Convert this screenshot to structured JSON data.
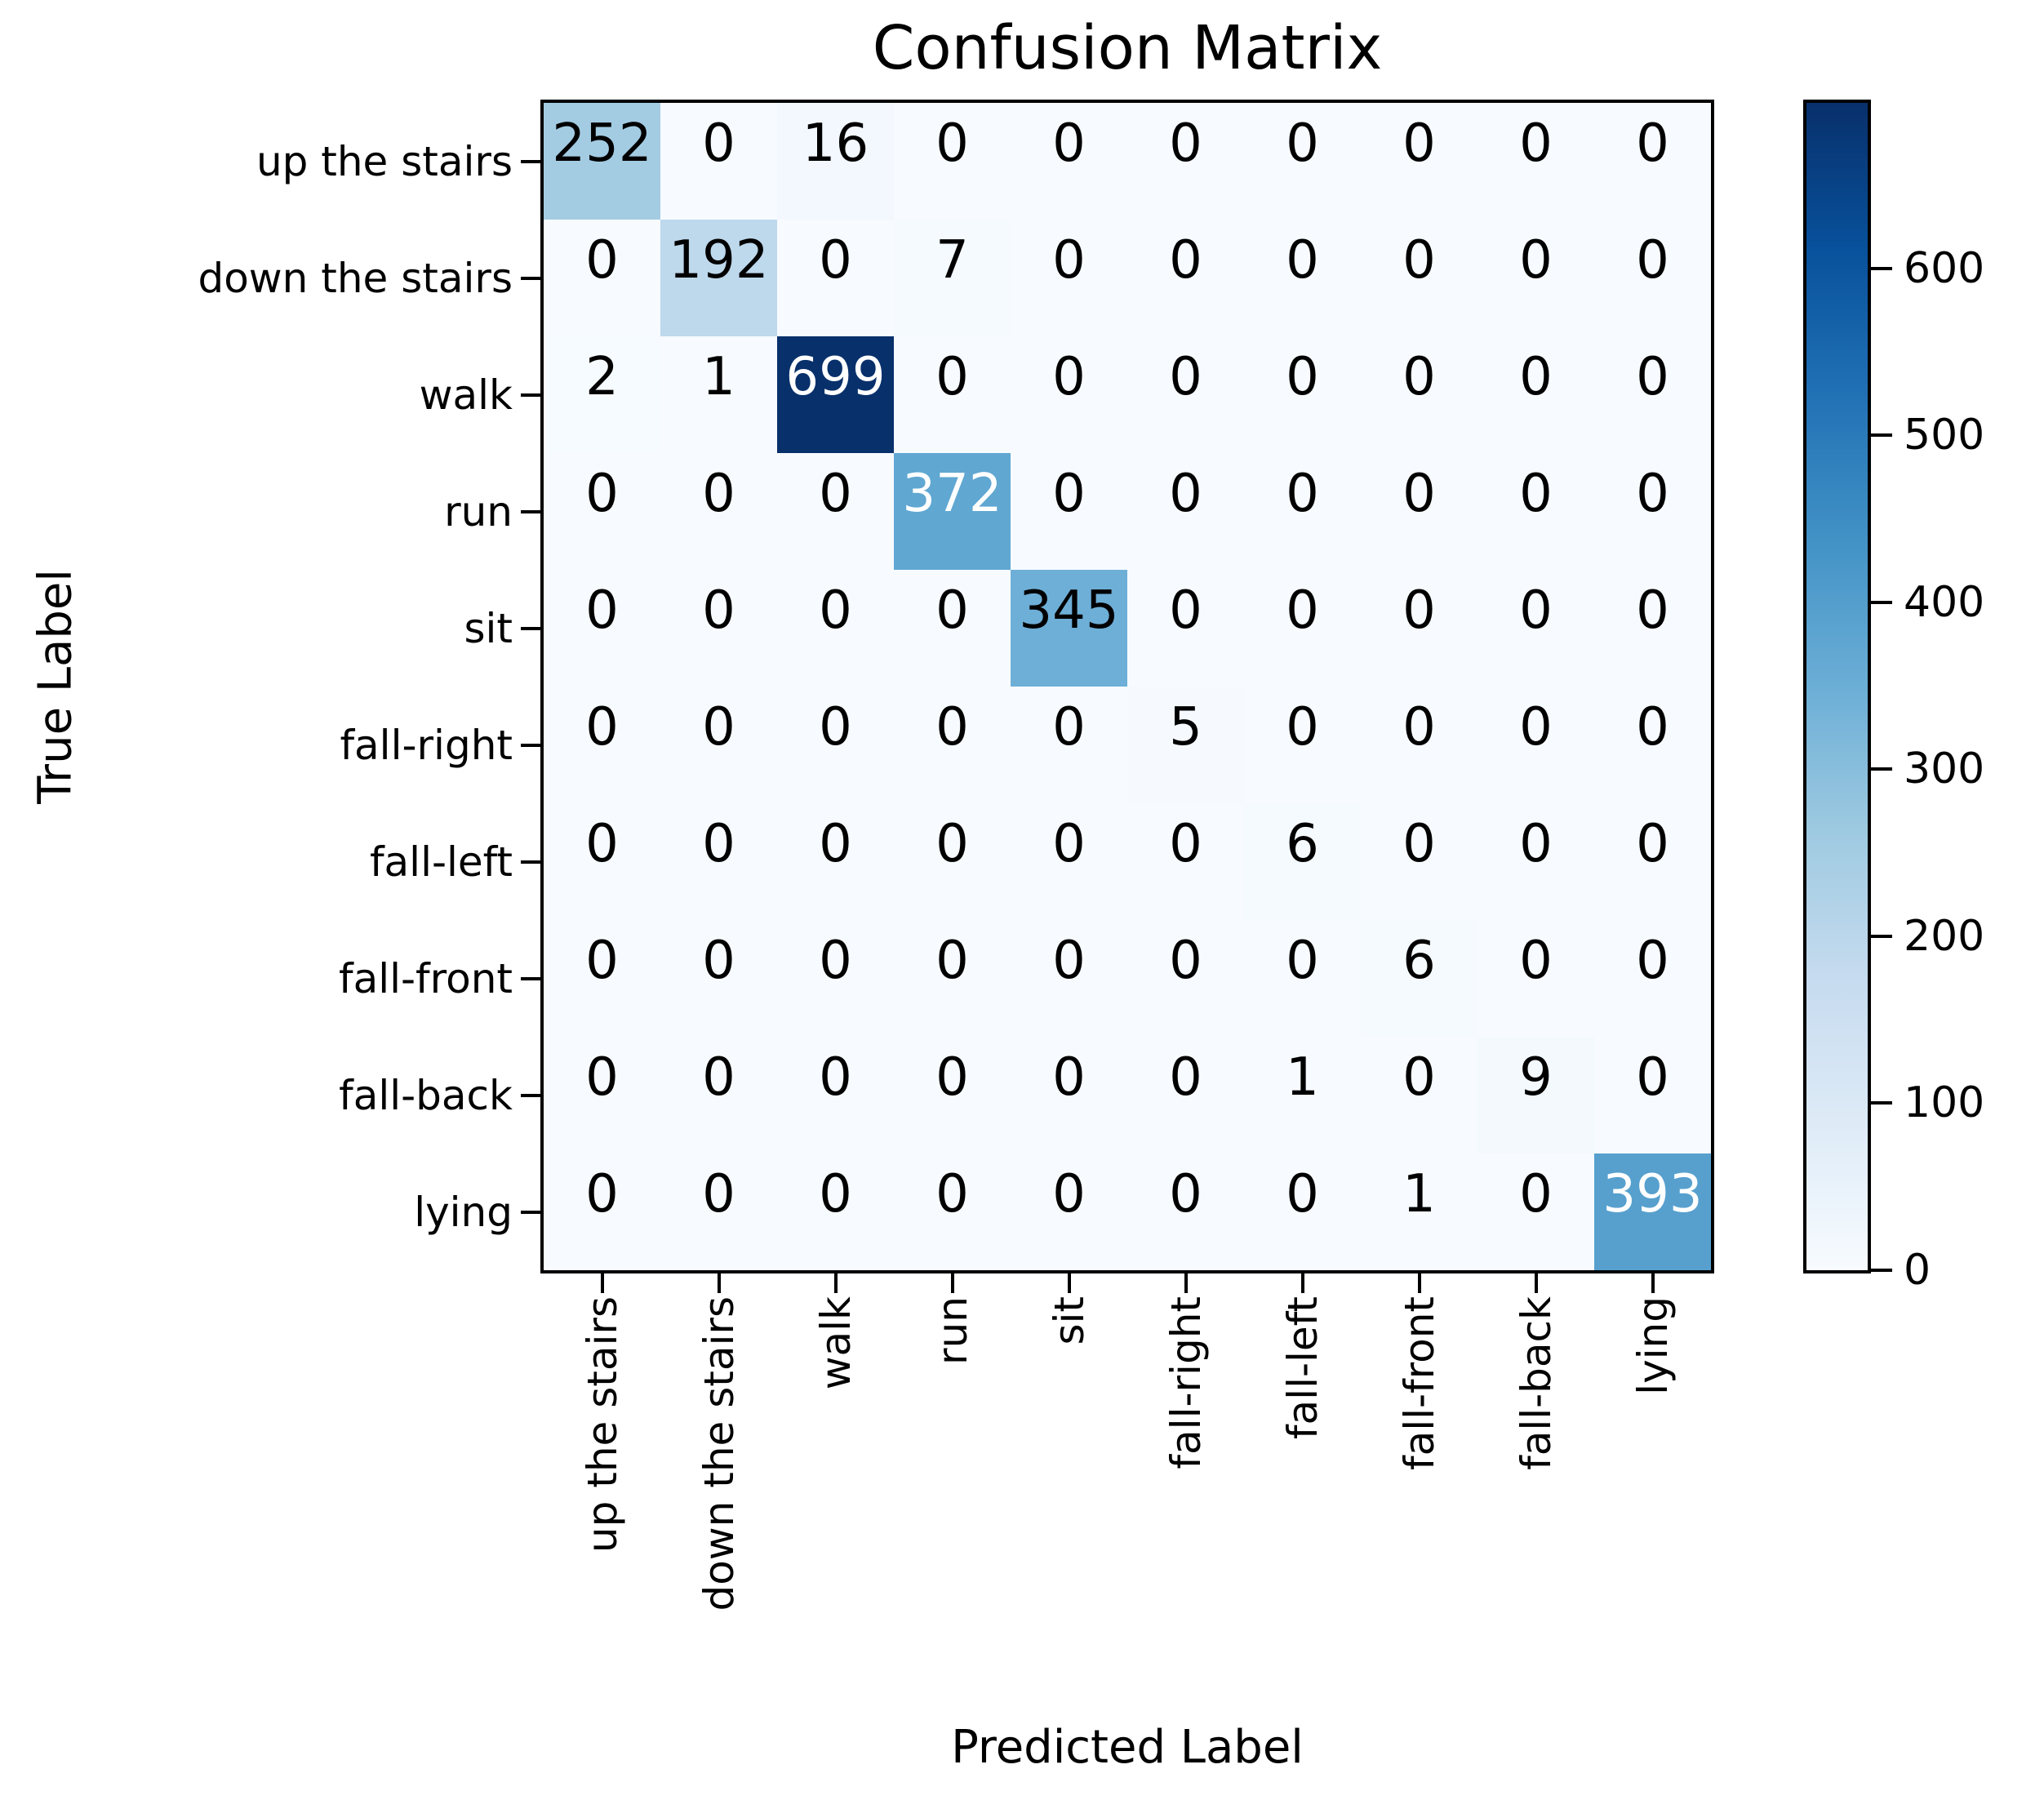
{
  "chart_data": {
    "type": "heatmap",
    "title": "Confusion Matrix",
    "xlabel": "Predicted Label",
    "ylabel": "True Label",
    "categories": [
      "up the stairs",
      "down the stairs",
      "walk",
      "run",
      "sit",
      "fall-right",
      "fall-left",
      "fall-front",
      "fall-back",
      "lying"
    ],
    "matrix": [
      [
        252,
        0,
        16,
        0,
        0,
        0,
        0,
        0,
        0,
        0
      ],
      [
        0,
        192,
        0,
        7,
        0,
        0,
        0,
        0,
        0,
        0
      ],
      [
        2,
        1,
        699,
        0,
        0,
        0,
        0,
        0,
        0,
        0
      ],
      [
        0,
        0,
        0,
        372,
        0,
        0,
        0,
        0,
        0,
        0
      ],
      [
        0,
        0,
        0,
        0,
        345,
        0,
        0,
        0,
        0,
        0
      ],
      [
        0,
        0,
        0,
        0,
        0,
        5,
        0,
        0,
        0,
        0
      ],
      [
        0,
        0,
        0,
        0,
        0,
        0,
        6,
        0,
        0,
        0
      ],
      [
        0,
        0,
        0,
        0,
        0,
        0,
        0,
        6,
        0,
        0
      ],
      [
        0,
        0,
        0,
        0,
        0,
        0,
        1,
        0,
        9,
        0
      ],
      [
        0,
        0,
        0,
        0,
        0,
        0,
        0,
        1,
        0,
        393
      ]
    ],
    "vmin": 0,
    "vmax": 699,
    "colorbar_ticks": [
      0,
      100,
      200,
      300,
      400,
      500,
      600
    ],
    "colormap": "Blues",
    "colormap_stops": [
      "#f7fbff",
      "#deebf7",
      "#c6dbef",
      "#9ecae1",
      "#6baed6",
      "#4292c6",
      "#2171b5",
      "#08519c",
      "#08306b"
    ],
    "cell_text_color_low": "#000000",
    "cell_text_color_high": "#ffffff",
    "grid": false,
    "legend_position": "right-colorbar"
  }
}
